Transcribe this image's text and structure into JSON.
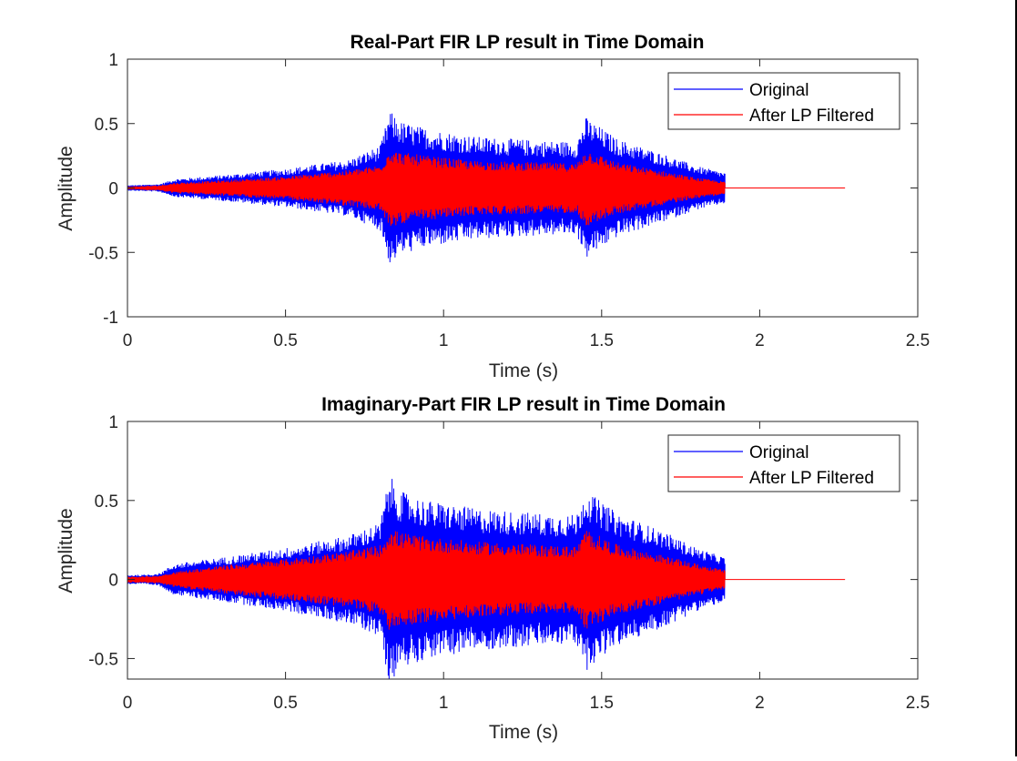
{
  "chart_data": [
    {
      "type": "line",
      "title": "Real-Part FIR LP result in Time Domain",
      "xlabel": "Time (s)",
      "ylabel": "Amplitude",
      "xlim": [
        0,
        2.5
      ],
      "ylim": [
        -1,
        1
      ],
      "xticks": [
        0,
        0.5,
        1,
        1.5,
        2,
        2.5
      ],
      "xtick_labels": [
        "0",
        "0.5",
        "1",
        "1.5",
        "2",
        "2.5"
      ],
      "yticks": [
        -1,
        -0.5,
        0,
        0.5,
        1
      ],
      "ytick_labels": [
        "-1",
        "-0.5",
        "0",
        "0.5",
        "1"
      ],
      "legend_position": "top-right",
      "series": [
        {
          "name": "Original",
          "color": "#0000ff",
          "envelope_x": [
            0,
            0.05,
            0.1,
            0.15,
            0.3,
            0.5,
            0.7,
            0.8,
            0.81,
            0.83,
            0.86,
            0.95,
            1.1,
            1.3,
            1.42,
            1.45,
            1.48,
            1.55,
            1.7,
            1.8,
            1.89
          ],
          "envelope_y": [
            0.02,
            0.025,
            0.03,
            0.07,
            0.1,
            0.15,
            0.22,
            0.33,
            0.42,
            0.6,
            0.52,
            0.46,
            0.4,
            0.37,
            0.36,
            0.55,
            0.5,
            0.38,
            0.26,
            0.17,
            0.12
          ],
          "tail_end": 1.89
        },
        {
          "name": "After LP Filtered",
          "color": "#ff0000",
          "envelope_x": [
            0,
            0.05,
            0.1,
            0.15,
            0.3,
            0.5,
            0.7,
            0.8,
            0.81,
            0.83,
            0.86,
            0.95,
            1.1,
            1.3,
            1.42,
            1.45,
            1.48,
            1.55,
            1.7,
            1.8,
            1.89
          ],
          "envelope_y": [
            0.01,
            0.015,
            0.02,
            0.04,
            0.06,
            0.09,
            0.14,
            0.18,
            0.22,
            0.31,
            0.28,
            0.25,
            0.21,
            0.2,
            0.19,
            0.3,
            0.27,
            0.2,
            0.13,
            0.08,
            0.05
          ],
          "tail_end": 2.27
        }
      ]
    },
    {
      "type": "line",
      "title": "Imaginary-Part FIR LP result in Time Domain",
      "xlabel": "Time (s)",
      "ylabel": "Amplitude",
      "xlim": [
        0,
        2.5
      ],
      "ylim": [
        -0.63,
        1
      ],
      "xticks": [
        0,
        0.5,
        1,
        1.5,
        2,
        2.5
      ],
      "xtick_labels": [
        "0",
        "0.5",
        "1",
        "1.5",
        "2",
        "2.5"
      ],
      "yticks": [
        -0.5,
        0,
        0.5,
        1
      ],
      "ytick_labels": [
        "-0.5",
        "0",
        "0.5",
        "1"
      ],
      "legend_position": "top-right",
      "series": [
        {
          "name": "Original",
          "color": "#0000ff",
          "envelope_x": [
            0,
            0.05,
            0.1,
            0.15,
            0.3,
            0.5,
            0.7,
            0.8,
            0.81,
            0.83,
            0.86,
            0.95,
            1.1,
            1.3,
            1.42,
            1.45,
            1.48,
            1.55,
            1.7,
            1.8,
            1.89
          ],
          "envelope_y": [
            0.03,
            0.03,
            0.04,
            0.1,
            0.14,
            0.2,
            0.28,
            0.36,
            0.48,
            0.66,
            0.56,
            0.5,
            0.45,
            0.42,
            0.41,
            0.58,
            0.52,
            0.42,
            0.3,
            0.2,
            0.14
          ],
          "tail_end": 1.89
        },
        {
          "name": "After LP Filtered",
          "color": "#ff0000",
          "envelope_x": [
            0,
            0.05,
            0.1,
            0.15,
            0.3,
            0.5,
            0.7,
            0.8,
            0.81,
            0.83,
            0.86,
            0.95,
            1.1,
            1.3,
            1.42,
            1.45,
            1.48,
            1.55,
            1.7,
            1.8,
            1.89
          ],
          "envelope_y": [
            0.02,
            0.02,
            0.025,
            0.05,
            0.09,
            0.13,
            0.18,
            0.22,
            0.25,
            0.33,
            0.3,
            0.27,
            0.24,
            0.22,
            0.21,
            0.32,
            0.29,
            0.22,
            0.15,
            0.1,
            0.06
          ],
          "tail_end": 2.27
        }
      ]
    }
  ]
}
